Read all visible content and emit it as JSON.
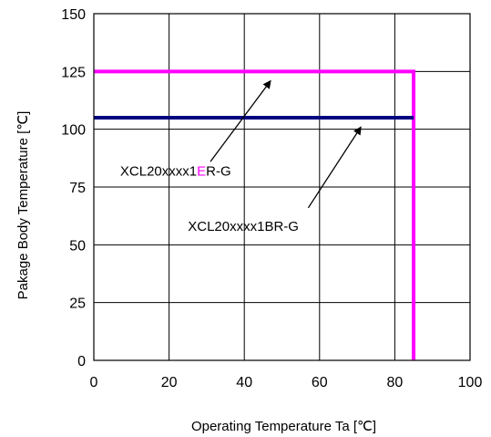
{
  "chart_data": {
    "type": "line",
    "xlabel": "Operating Temperature   Ta [℃]",
    "ylabel": "Pakage Body Temperature [℃]",
    "xlim": [
      0,
      100
    ],
    "ylim": [
      0,
      150
    ],
    "x_ticks": [
      0,
      20,
      40,
      60,
      80,
      100
    ],
    "y_ticks": [
      0,
      25,
      50,
      75,
      100,
      125,
      150
    ],
    "x_tick_labels": [
      "0",
      "20",
      "40",
      "60",
      "80",
      "100"
    ],
    "y_tick_labels": [
      "0",
      "25",
      "50",
      "75",
      "100",
      "125",
      "150"
    ],
    "grid": true,
    "series": [
      {
        "name": "XCL20xxxx1ER-G",
        "color": "#FF00FF",
        "points": [
          [
            0,
            125
          ],
          [
            85,
            125
          ],
          [
            85,
            0
          ]
        ]
      },
      {
        "name": "XCL20xxxx1BR-G",
        "color": "#000080",
        "points": [
          [
            0,
            105
          ],
          [
            85,
            105
          ]
        ]
      }
    ],
    "annotations": [
      {
        "text_parts": [
          "XCL20xxxx1",
          "E",
          "R-G"
        ],
        "part_colors": [
          "#000000",
          "#FF00FF",
          "#000000"
        ],
        "text_pos": [
          7,
          80
        ],
        "arrow_from": [
          31,
          86
        ],
        "arrow_to": [
          47,
          121
        ]
      },
      {
        "text_parts": [
          "XCL20xxxx1BR-G"
        ],
        "part_colors": [
          "#000000"
        ],
        "text_pos": [
          25,
          56
        ],
        "arrow_from": [
          57,
          66
        ],
        "arrow_to": [
          71,
          101
        ]
      }
    ]
  }
}
